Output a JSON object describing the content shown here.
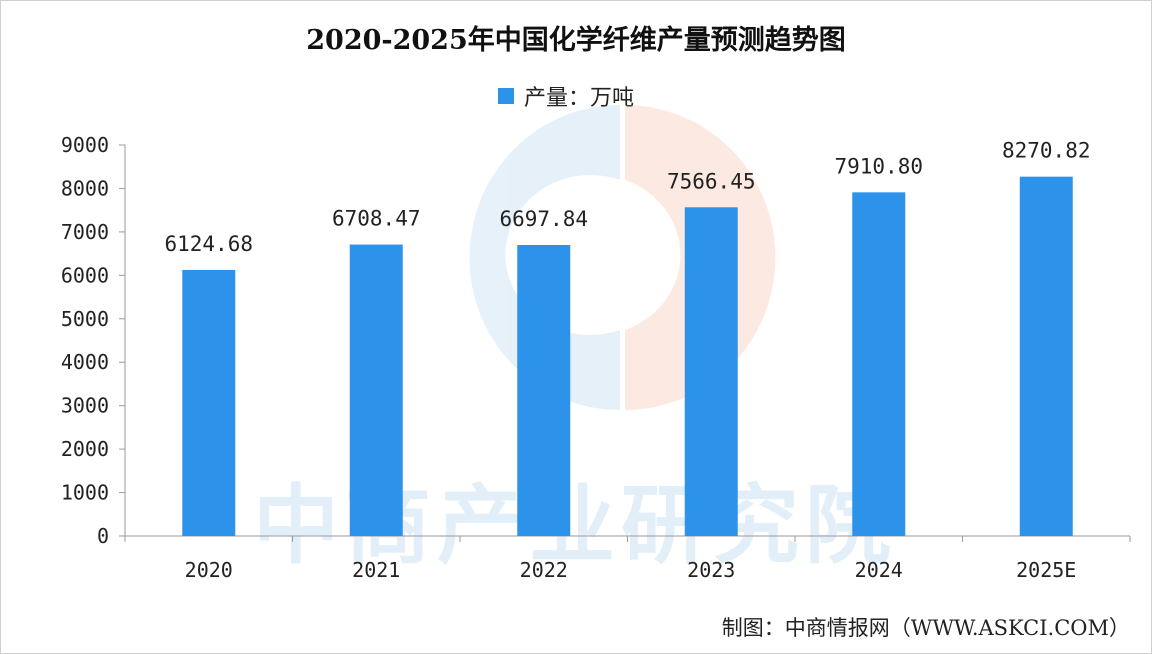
{
  "chart_data": {
    "type": "bar",
    "title": "2020-2025年中国化学纤维产量预测趋势图",
    "legend": {
      "label": "产量：万吨",
      "placement": "top-center"
    },
    "categories": [
      "2020",
      "2021",
      "2022",
      "2023",
      "2024",
      "2025E"
    ],
    "series": [
      {
        "name": "产量：万吨",
        "values": [
          6124.68,
          6708.47,
          6697.84,
          7566.45,
          7910.8,
          8270.82
        ],
        "labels": [
          "6124.68",
          "6708.47",
          "6697.84",
          "7566.45",
          "7910.80",
          "8270.82"
        ]
      }
    ],
    "ylim": [
      0,
      9000
    ],
    "yticks": [
      0,
      1000,
      2000,
      3000,
      4000,
      5000,
      6000,
      7000,
      8000,
      9000
    ],
    "grid": false,
    "bar_color": "#2d93ea",
    "xlabel": "",
    "ylabel": ""
  },
  "footer": "制图：中商情报网（WWW.ASKCI.COM）",
  "watermark": "中商产业研究院"
}
